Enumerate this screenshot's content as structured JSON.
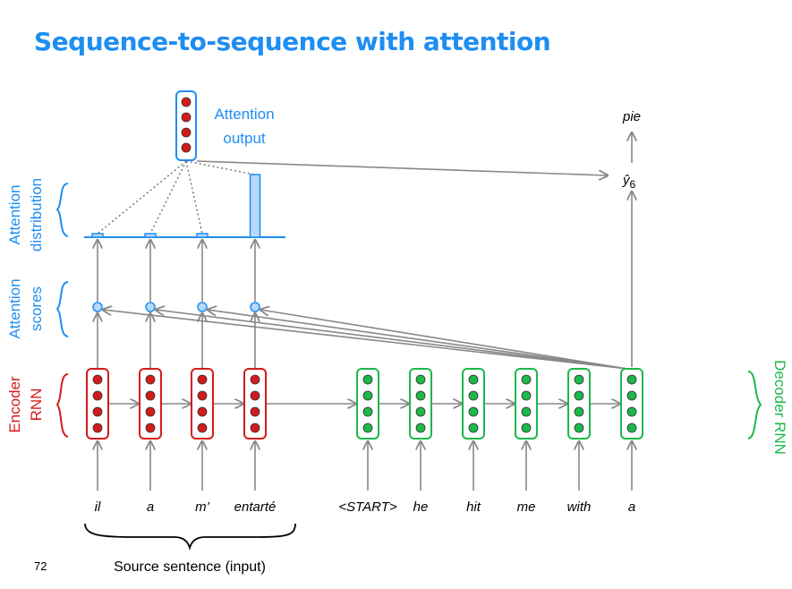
{
  "slide": {
    "title": "Sequence-to-sequence with attention",
    "page_number": "72"
  },
  "labels": {
    "attention_output_line1": "Attention",
    "attention_output_line2": "output",
    "attention_distribution_line1": "Attention",
    "attention_distribution_line2": "distribution",
    "attention_scores_line1": "Attention",
    "attention_scores_line2": "scores",
    "encoder_rnn_line1": "Encoder",
    "encoder_rnn_line2": "RNN",
    "decoder_rnn": "Decoder RNN",
    "source_sentence": "Source sentence (input)",
    "y_hat_base": "ŷ",
    "y_hat_sub": "6",
    "prediction": "pie"
  },
  "source_words": [
    "il",
    "a",
    "m’",
    "entarté"
  ],
  "target_words": [
    "<START>",
    "he",
    "hit",
    "me",
    "with",
    "a"
  ],
  "attention_weights": [
    0.03,
    0.03,
    0.03,
    0.91
  ],
  "colors": {
    "title": "#1f8ef1",
    "encoder": "#d41b1b",
    "decoder": "#1cb84a",
    "attention": "#1f8ef1",
    "arrow": "#888888"
  }
}
